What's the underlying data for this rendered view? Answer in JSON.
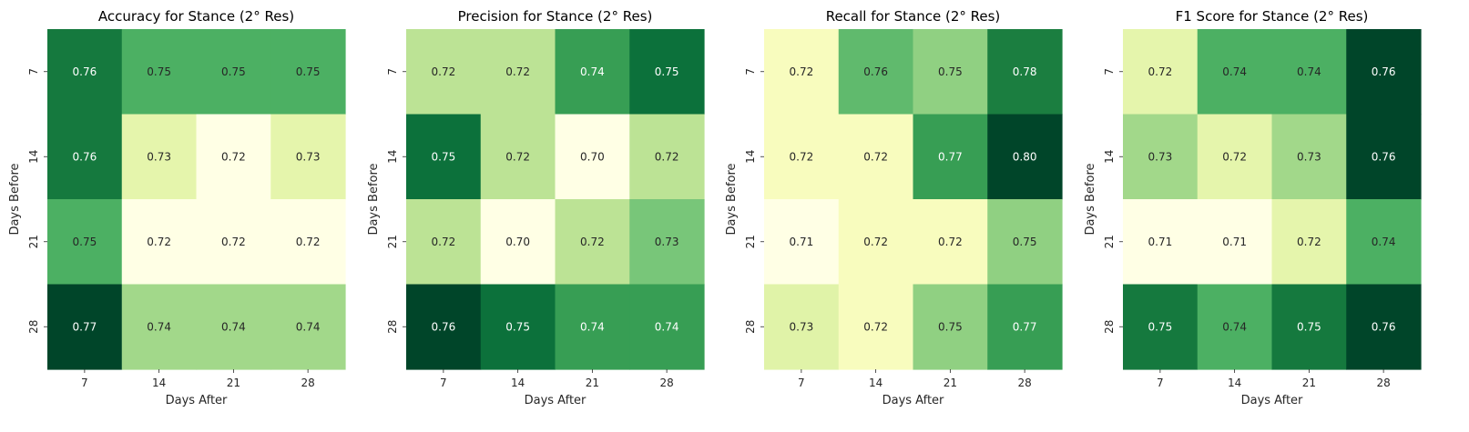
{
  "chart_data": [
    {
      "type": "heatmap",
      "title": "Accuracy for Stance (2° Res)",
      "xlabel": "Days After",
      "ylabel": "Days Before",
      "x_categories": [
        "7",
        "14",
        "21",
        "28"
      ],
      "y_categories": [
        "7",
        "14",
        "21",
        "28"
      ],
      "values": [
        [
          0.76,
          0.75,
          0.75,
          0.75
        ],
        [
          0.76,
          0.73,
          0.72,
          0.73
        ],
        [
          0.75,
          0.72,
          0.72,
          0.72
        ],
        [
          0.77,
          0.74,
          0.74,
          0.74
        ]
      ],
      "colormap": "YlGn",
      "colorbar": false,
      "annotated": true
    },
    {
      "type": "heatmap",
      "title": "Precision for Stance (2° Res)",
      "xlabel": "Days After",
      "ylabel": "Days Before",
      "x_categories": [
        "7",
        "14",
        "21",
        "28"
      ],
      "y_categories": [
        "7",
        "14",
        "21",
        "28"
      ],
      "values": [
        [
          0.72,
          0.72,
          0.74,
          0.75
        ],
        [
          0.75,
          0.72,
          0.7,
          0.72
        ],
        [
          0.72,
          0.7,
          0.72,
          0.73
        ],
        [
          0.76,
          0.75,
          0.74,
          0.74
        ]
      ],
      "colormap": "YlGn",
      "colorbar": false,
      "annotated": true
    },
    {
      "type": "heatmap",
      "title": "Recall for Stance (2° Res)",
      "xlabel": "Days After",
      "ylabel": "Days Before",
      "x_categories": [
        "7",
        "14",
        "21",
        "28"
      ],
      "y_categories": [
        "7",
        "14",
        "21",
        "28"
      ],
      "values": [
        [
          0.72,
          0.76,
          0.75,
          0.78
        ],
        [
          0.72,
          0.72,
          0.77,
          0.8
        ],
        [
          0.71,
          0.72,
          0.72,
          0.75
        ],
        [
          0.73,
          0.72,
          0.75,
          0.77
        ]
      ],
      "colormap": "YlGn",
      "colorbar": false,
      "annotated": true
    },
    {
      "type": "heatmap",
      "title": "F1 Score for Stance (2° Res)",
      "xlabel": "Days After",
      "ylabel": "Days Before",
      "x_categories": [
        "7",
        "14",
        "21",
        "28"
      ],
      "y_categories": [
        "7",
        "14",
        "21",
        "28"
      ],
      "values": [
        [
          0.72,
          0.74,
          0.74,
          0.76
        ],
        [
          0.73,
          0.72,
          0.73,
          0.76
        ],
        [
          0.71,
          0.71,
          0.72,
          0.74
        ],
        [
          0.75,
          0.74,
          0.75,
          0.76
        ]
      ],
      "colormap": "YlGn",
      "colorbar": false,
      "annotated": true
    }
  ]
}
